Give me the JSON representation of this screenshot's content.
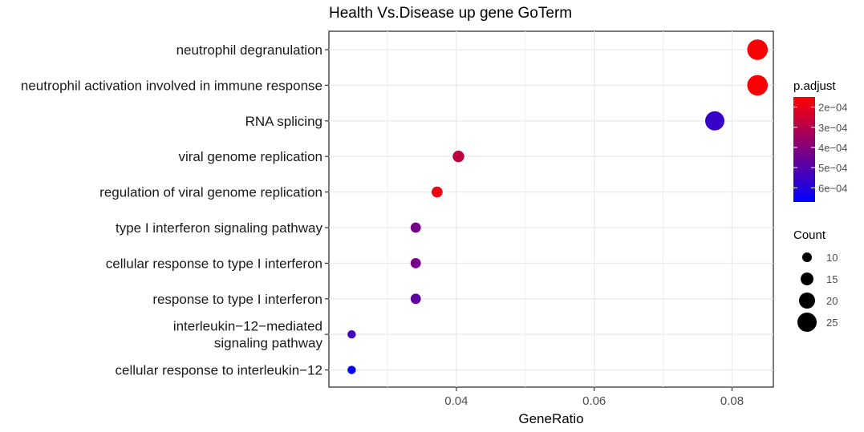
{
  "chart_data": {
    "type": "scatter",
    "title": "Health Vs.Disease up gene GoTerm",
    "xlabel": "GeneRatio",
    "ylabel": "",
    "xlim": [
      0.0215,
      0.086
    ],
    "xticks": [
      {
        "value": 0.04,
        "label": "0.04"
      },
      {
        "value": 0.06,
        "label": "0.06"
      },
      {
        "value": 0.08,
        "label": "0.08"
      }
    ],
    "grid": true,
    "legend_position": "right",
    "categories": [
      [
        "neutrophil degranulation"
      ],
      [
        "neutrophil activation involved in immune response"
      ],
      [
        "RNA splicing"
      ],
      [
        "viral genome replication"
      ],
      [
        "regulation of viral genome replication"
      ],
      [
        "type I interferon signaling pathway"
      ],
      [
        "cellular response to type I interferon"
      ],
      [
        "response to type I interferon"
      ],
      [
        "interleukin−12−mediated",
        "signaling pathway"
      ],
      [
        "cellular response to interleukin−12"
      ]
    ],
    "points": [
      {
        "gene_ratio": 0.0837,
        "count": 27,
        "p_adjust": 0.00016
      },
      {
        "gene_ratio": 0.0837,
        "count": 27,
        "p_adjust": 0.00016
      },
      {
        "gene_ratio": 0.0775,
        "count": 25,
        "p_adjust": 0.00056
      },
      {
        "gene_ratio": 0.0403,
        "count": 13,
        "p_adjust": 0.00028
      },
      {
        "gene_ratio": 0.0372,
        "count": 12,
        "p_adjust": 0.00018
      },
      {
        "gene_ratio": 0.0341,
        "count": 11,
        "p_adjust": 0.00043
      },
      {
        "gene_ratio": 0.0341,
        "count": 11,
        "p_adjust": 0.00043
      },
      {
        "gene_ratio": 0.0341,
        "count": 11,
        "p_adjust": 0.00048
      },
      {
        "gene_ratio": 0.0248,
        "count": 8,
        "p_adjust": 0.00053
      },
      {
        "gene_ratio": 0.0248,
        "count": 8,
        "p_adjust": 0.00066
      }
    ],
    "color_legend": {
      "title": "p.adjust",
      "range": [
        0.00015,
        0.00067
      ],
      "low_color": "#ff0000",
      "high_color": "#0000ff",
      "ticks": [
        {
          "value": 0.0002,
          "label": "2e−04"
        },
        {
          "value": 0.0003,
          "label": "3e−04"
        },
        {
          "value": 0.0004,
          "label": "4e−04"
        },
        {
          "value": 0.0005,
          "label": "5e−04"
        },
        {
          "value": 0.0006,
          "label": "6e−04"
        }
      ]
    },
    "size_legend": {
      "title": "Count",
      "items": [
        {
          "count": 10,
          "label": "10"
        },
        {
          "count": 15,
          "label": "15"
        },
        {
          "count": 20,
          "label": "20"
        },
        {
          "count": 25,
          "label": "25"
        }
      ]
    }
  }
}
